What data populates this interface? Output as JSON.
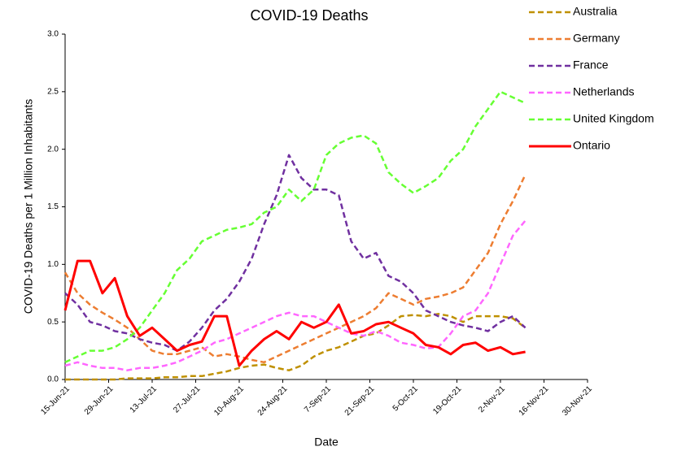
{
  "chart_data": {
    "type": "line",
    "title": "COVID-19 Deaths",
    "x_label": "Date",
    "y_label": "COVID-19 Deaths per 1 Million Inhabitants",
    "x": [
      "15-Jun-21",
      "19-Jun-21",
      "23-Jun-21",
      "27-Jun-21",
      "1-Jul-21",
      "5-Jul-21",
      "9-Jul-21",
      "13-Jul-21",
      "17-Jul-21",
      "21-Jul-21",
      "25-Jul-21",
      "29-Jul-21",
      "2-Aug-21",
      "6-Aug-21",
      "10-Aug-21",
      "14-Aug-21",
      "18-Aug-21",
      "22-Aug-21",
      "26-Aug-21",
      "30-Aug-21",
      "3-Sep-21",
      "7-Sep-21",
      "11-Sep-21",
      "15-Sep-21",
      "19-Sep-21",
      "23-Sep-21",
      "27-Sep-21",
      "1-Oct-21",
      "5-Oct-21",
      "9-Oct-21",
      "13-Oct-21",
      "17-Oct-21",
      "21-Oct-21",
      "25-Oct-21",
      "29-Oct-21",
      "2-Nov-21",
      "6-Nov-21",
      "10-Nov-21"
    ],
    "series": [
      {
        "name": "Australia",
        "color": "#bf9000",
        "dashed": true,
        "values": [
          0,
          0,
          0,
          0,
          0,
          0.01,
          0.01,
          0.01,
          0.02,
          0.02,
          0.03,
          0.03,
          0.05,
          0.07,
          0.1,
          0.12,
          0.13,
          0.1,
          0.08,
          0.12,
          0.2,
          0.25,
          0.28,
          0.33,
          0.38,
          0.4,
          0.47,
          0.55,
          0.56,
          0.55,
          0.57,
          0.55,
          0.5,
          0.55,
          0.55,
          0.55,
          0.53,
          0.45
        ]
      },
      {
        "name": "Germany",
        "color": "#ed7d31",
        "dashed": true,
        "values": [
          0.93,
          0.75,
          0.65,
          0.58,
          0.52,
          0.45,
          0.35,
          0.25,
          0.22,
          0.22,
          0.25,
          0.28,
          0.2,
          0.22,
          0.2,
          0.17,
          0.15,
          0.2,
          0.25,
          0.3,
          0.35,
          0.4,
          0.45,
          0.5,
          0.55,
          0.62,
          0.75,
          0.7,
          0.65,
          0.7,
          0.72,
          0.75,
          0.8,
          0.95,
          1.1,
          1.35,
          1.55,
          1.78
        ]
      },
      {
        "name": "France",
        "color": "#7030a0",
        "dashed": true,
        "values": [
          0.75,
          0.65,
          0.5,
          0.47,
          0.42,
          0.4,
          0.35,
          0.32,
          0.3,
          0.25,
          0.33,
          0.45,
          0.6,
          0.7,
          0.85,
          1.05,
          1.35,
          1.6,
          1.95,
          1.75,
          1.65,
          1.65,
          1.6,
          1.2,
          1.05,
          1.1,
          0.9,
          0.85,
          0.75,
          0.6,
          0.55,
          0.5,
          0.47,
          0.45,
          0.42,
          0.5,
          0.55,
          0.45
        ]
      },
      {
        "name": "Netherlands",
        "color": "#ff66ff",
        "dashed": true,
        "values": [
          0.12,
          0.15,
          0.12,
          0.1,
          0.1,
          0.08,
          0.1,
          0.1,
          0.12,
          0.15,
          0.2,
          0.25,
          0.32,
          0.35,
          0.4,
          0.45,
          0.5,
          0.55,
          0.58,
          0.55,
          0.55,
          0.5,
          0.45,
          0.4,
          0.38,
          0.42,
          0.38,
          0.32,
          0.3,
          0.27,
          0.28,
          0.4,
          0.55,
          0.6,
          0.75,
          1.0,
          1.25,
          1.38
        ]
      },
      {
        "name": "United Kingdom",
        "color": "#66ff33",
        "dashed": true,
        "values": [
          0.15,
          0.2,
          0.25,
          0.25,
          0.28,
          0.35,
          0.45,
          0.6,
          0.75,
          0.95,
          1.05,
          1.2,
          1.25,
          1.3,
          1.32,
          1.35,
          1.45,
          1.5,
          1.65,
          1.55,
          1.65,
          1.95,
          2.05,
          2.1,
          2.12,
          2.05,
          1.8,
          1.7,
          1.62,
          1.68,
          1.75,
          1.9,
          2.0,
          2.2,
          2.35,
          2.5,
          2.45,
          2.4
        ]
      },
      {
        "name": "Ontario",
        "color": "#ff0000",
        "dashed": false,
        "values": [
          0.6,
          1.03,
          1.03,
          0.75,
          0.88,
          0.55,
          0.38,
          0.45,
          0.35,
          0.25,
          0.3,
          0.33,
          0.55,
          0.55,
          0.12,
          0.25,
          0.35,
          0.42,
          0.35,
          0.5,
          0.45,
          0.5,
          0.65,
          0.4,
          0.42,
          0.48,
          0.5,
          0.45,
          0.4,
          0.3,
          0.28,
          0.22,
          0.3,
          0.32,
          0.25,
          0.28,
          0.22,
          0.24
        ]
      }
    ],
    "xlim": [
      "15-Jun-21",
      "30-Nov-21"
    ],
    "xticks": [
      "15-Jun-21",
      "29-Jun-21",
      "13-Jul-21",
      "27-Jul-21",
      "10-Aug-21",
      "24-Aug-21",
      "7-Sep-21",
      "21-Sep-21",
      "5-Oct-21",
      "19-Oct-21",
      "2-Nov-21",
      "16-Nov-21",
      "30-Nov-21"
    ],
    "ylim": [
      0,
      3
    ],
    "yticks": [
      {
        "value": 0,
        "label": "0.0"
      },
      {
        "value": 0.5,
        "label": "0.5"
      },
      {
        "value": 1,
        "label": "1.0"
      },
      {
        "value": 1.5,
        "label": "1.5"
      },
      {
        "value": 2,
        "label": "2.0"
      },
      {
        "value": 2.5,
        "label": "2.5"
      },
      {
        "value": 3,
        "label": "3.0"
      }
    ],
    "legend": "right"
  }
}
